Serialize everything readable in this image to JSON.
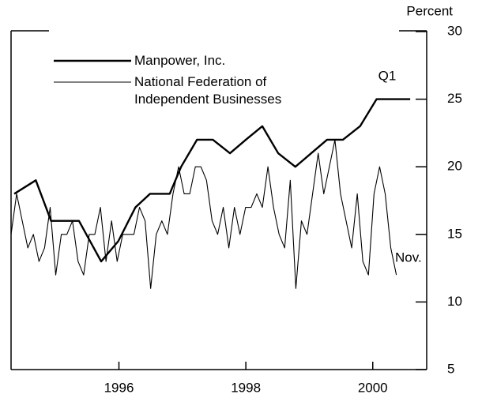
{
  "chart_data": {
    "type": "line",
    "unit_label": "Percent",
    "annotations": [
      "Q1",
      "Nov."
    ],
    "xlim": [
      1994.8,
      2001.35
    ],
    "xticks": [
      {
        "value": 1996.5,
        "label": "1996"
      },
      {
        "value": 1998.5,
        "label": "1998"
      },
      {
        "value": 2000.5,
        "label": "2000"
      }
    ],
    "ylim": [
      5,
      30
    ],
    "yticks": [
      5,
      10,
      15,
      20,
      25,
      30
    ],
    "series": [
      {
        "name": "Manpower, Inc.",
        "color": "#000000",
        "width": 2.4,
        "x": [
          1994.85,
          1995.19,
          1995.43,
          1995.87,
          1996.22,
          1996.49,
          1996.76,
          1996.99,
          1997.3,
          1997.48,
          1997.73,
          1997.98,
          1998.25,
          1998.5,
          1998.76,
          1999.01,
          1999.28,
          1999.53,
          1999.78,
          2000.03,
          2000.3,
          2000.56,
          2001.09
        ],
        "values": [
          18,
          19,
          16,
          16,
          13,
          14.5,
          17,
          18,
          18,
          20,
          22,
          22,
          21,
          22,
          23,
          21,
          20,
          21,
          22,
          22,
          23,
          25,
          25
        ]
      },
      {
        "name": "National Federation of Independent Businesses",
        "color": "#000000",
        "width": 1.1,
        "x": [
          1994.8,
          1994.888,
          1994.976,
          1995.064,
          1995.152,
          1995.24,
          1995.328,
          1995.416,
          1995.504,
          1995.592,
          1995.68,
          1995.768,
          1995.856,
          1995.944,
          1996.032,
          1996.12,
          1996.208,
          1996.296,
          1996.384,
          1996.472,
          1996.56,
          1996.648,
          1996.736,
          1996.824,
          1996.912,
          1997.0,
          1997.088,
          1997.176,
          1997.264,
          1997.352,
          1997.44,
          1997.528,
          1997.616,
          1997.704,
          1997.792,
          1997.88,
          1997.968,
          1998.056,
          1998.144,
          1998.232,
          1998.32,
          1998.408,
          1998.496,
          1998.584,
          1998.672,
          1998.76,
          1998.848,
          1998.936,
          1999.024,
          1999.112,
          1999.2,
          1999.288,
          1999.376,
          1999.464,
          1999.552,
          1999.64,
          1999.728,
          1999.816,
          1999.904,
          1999.992,
          2000.08,
          2000.168,
          2000.256,
          2000.344,
          2000.432,
          2000.52,
          2000.608,
          2000.696,
          2000.784,
          2000.872
        ],
        "values": [
          15,
          18,
          16,
          14,
          15,
          13,
          14,
          17,
          12,
          15,
          15,
          16,
          13,
          12,
          15,
          15,
          17,
          13,
          16,
          13,
          15,
          15,
          15,
          17,
          16,
          11,
          15,
          16,
          15,
          18,
          20,
          18,
          18,
          20,
          20,
          19,
          16,
          15,
          17,
          14,
          17,
          15,
          17,
          17,
          18,
          17,
          20,
          17,
          15,
          14,
          19,
          11,
          16,
          15,
          18,
          21,
          18,
          20,
          22,
          18,
          16,
          14,
          18,
          13,
          12,
          18,
          20,
          18,
          14,
          12
        ]
      }
    ]
  }
}
